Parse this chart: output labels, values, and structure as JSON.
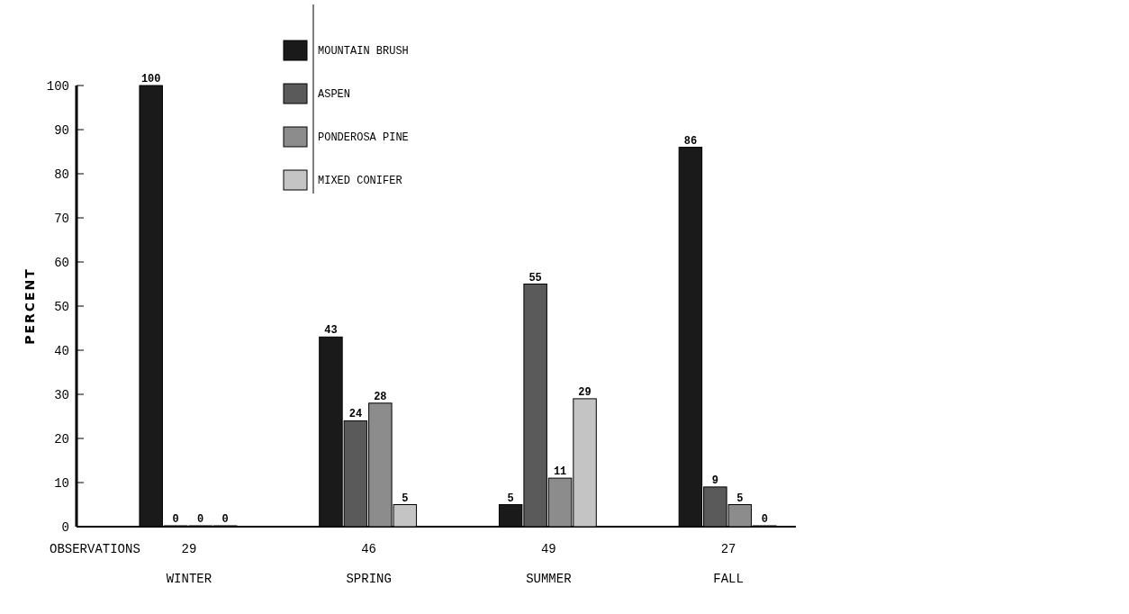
{
  "chart_data": {
    "type": "bar",
    "ylabel": "PERCENT",
    "categories": [
      "WINTER",
      "SPRING",
      "SUMMER",
      "FALL"
    ],
    "series": [
      {
        "name": "MOUNTAIN BRUSH",
        "color": "#1a1a1a",
        "values": [
          100,
          43,
          5,
          86
        ]
      },
      {
        "name": "ASPEN",
        "color": "#5a5a5a",
        "values": [
          0,
          24,
          55,
          9
        ]
      },
      {
        "name": "PONDEROSA PINE",
        "color": "#8c8c8c",
        "values": [
          0,
          28,
          11,
          5
        ]
      },
      {
        "name": "MIXED CONIFER",
        "color": "#c4c4c4",
        "values": [
          0,
          5,
          29,
          0
        ]
      }
    ],
    "ylim": [
      0,
      100
    ],
    "yticks": [
      0,
      10,
      20,
      30,
      40,
      50,
      60,
      70,
      80,
      90,
      100
    ],
    "data_labels": true,
    "legend": "top",
    "grid": false,
    "annotations": [
      "OBSERVATIONS",
      "29",
      "46",
      "49",
      "27"
    ]
  }
}
